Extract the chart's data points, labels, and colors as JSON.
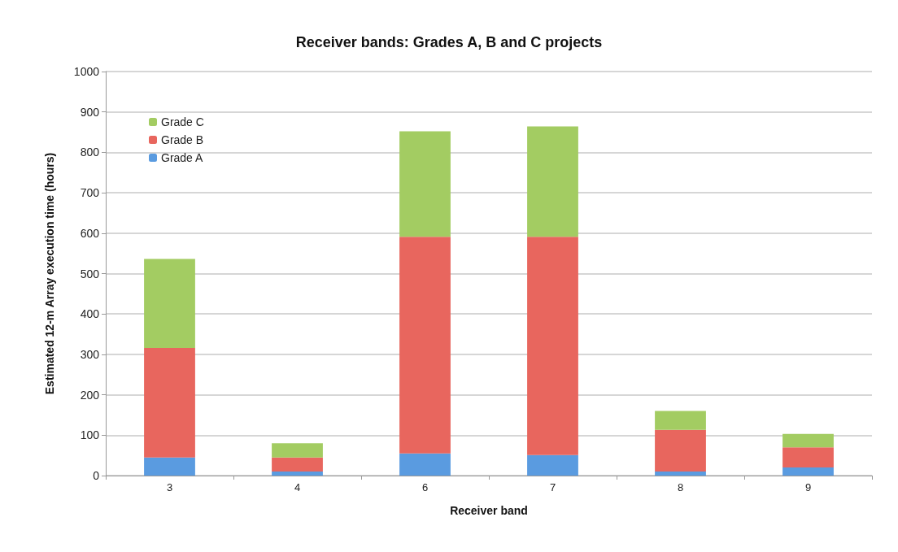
{
  "chart_data": {
    "type": "bar",
    "title": "Receiver bands: Grades A, B and C projects",
    "xlabel": "Receiver band",
    "ylabel": "Estimated 12-m Array execution time (hours)",
    "categories": [
      "3",
      "4",
      "6",
      "7",
      "8",
      "9"
    ],
    "stacked": true,
    "series": [
      {
        "name": "Grade A",
        "color": "#5a9be0",
        "values": [
          45,
          10,
          55,
          51,
          10,
          20
        ]
      },
      {
        "name": "Grade B",
        "color": "#e8665e",
        "values": [
          271,
          35,
          536,
          540,
          103,
          50
        ]
      },
      {
        "name": "Grade C",
        "color": "#a3cc62",
        "values": [
          220,
          35,
          261,
          273,
          47,
          33
        ]
      }
    ],
    "ylim": [
      0,
      1000
    ],
    "yticks": [
      0,
      100,
      200,
      300,
      400,
      500,
      600,
      700,
      800,
      900,
      1000
    ],
    "grid": "y",
    "legend": "top left"
  }
}
